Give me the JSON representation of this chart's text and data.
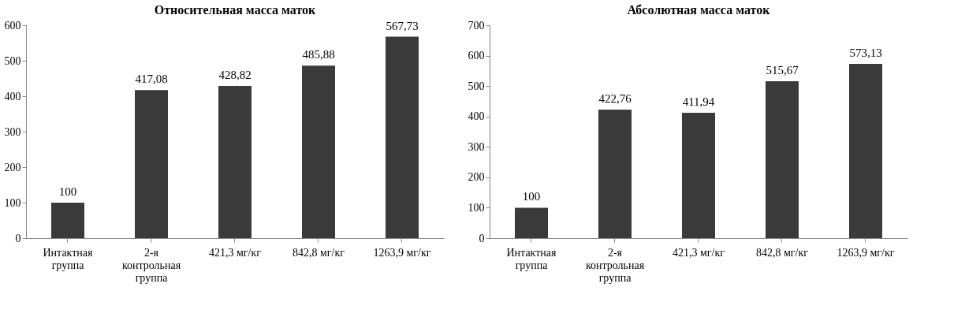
{
  "chart_data": [
    {
      "type": "bar",
      "title": "Относительная  масса маток",
      "categories": [
        "Интактная группа",
        "2-я контрольная группа",
        "421,3 мг/кг",
        "842,8 мг/кг",
        "1263,9 мг/кг"
      ],
      "values": [
        100,
        417.08,
        428.82,
        485.88,
        567.73
      ],
      "value_labels": [
        "100",
        "417,08",
        "428,82",
        "485,88",
        "567,73"
      ],
      "color": "#3a3a3a",
      "ylim": [
        0,
        600
      ],
      "yticks": [
        0,
        100,
        200,
        300,
        400,
        500,
        600
      ],
      "grid": false
    },
    {
      "type": "bar",
      "title": "Абсолютная  масса маток",
      "categories": [
        "Интактная группа",
        "2-я контрольная группа",
        "421,3 мг/кг",
        "842,8 мг/кг",
        "1263,9 мг/кг"
      ],
      "values": [
        100,
        422.76,
        411.94,
        515.67,
        573.13
      ],
      "value_labels": [
        "100",
        "422,76",
        "411,94",
        "515,67",
        "573,13"
      ],
      "color": "#3a3a3a",
      "ylim": [
        0,
        700
      ],
      "yticks": [
        0,
        100,
        200,
        300,
        400,
        500,
        600,
        700
      ],
      "grid": false
    }
  ]
}
